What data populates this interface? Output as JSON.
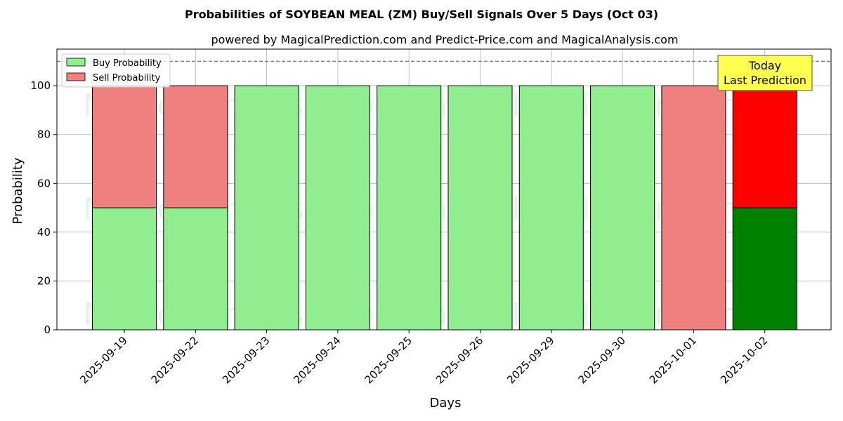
{
  "chart_data": {
    "type": "bar",
    "stacked": true,
    "title": "Probabilities of SOYBEAN MEAL (ZM) Buy/Sell Signals Over 5 Days (Oct 03)",
    "subtitle": "powered by MagicalPrediction.com and Predict-Price.com and MagicalAnalysis.com",
    "xlabel": "Days",
    "ylabel": "Probability",
    "categories": [
      "2025-09-19",
      "2025-09-22",
      "2025-09-23",
      "2025-09-24",
      "2025-09-25",
      "2025-09-26",
      "2025-09-29",
      "2025-09-30",
      "2025-10-01",
      "2025-10-02"
    ],
    "series": [
      {
        "name": "Buy Probability",
        "values": [
          50,
          50,
          100,
          100,
          100,
          100,
          100,
          100,
          0,
          50
        ],
        "color": "#90ee90",
        "highlight_color": "#008000"
      },
      {
        "name": "Sell Probability",
        "values": [
          50,
          50,
          0,
          0,
          0,
          0,
          0,
          0,
          100,
          50
        ],
        "color": "#f08080",
        "highlight_color": "#ff0000"
      }
    ],
    "highlight_index": 9,
    "ylim": [
      0,
      115
    ],
    "yticks": [
      0,
      20,
      40,
      60,
      80,
      100
    ],
    "reference_line": 110,
    "grid": true,
    "legend_position": "top-left",
    "annotation": {
      "line1": "Today",
      "line2": "Last Prediction",
      "color": "#ffff4d"
    },
    "watermarks": [
      "MagicalAnalysis.com",
      "MagicalPrediction.com"
    ]
  }
}
